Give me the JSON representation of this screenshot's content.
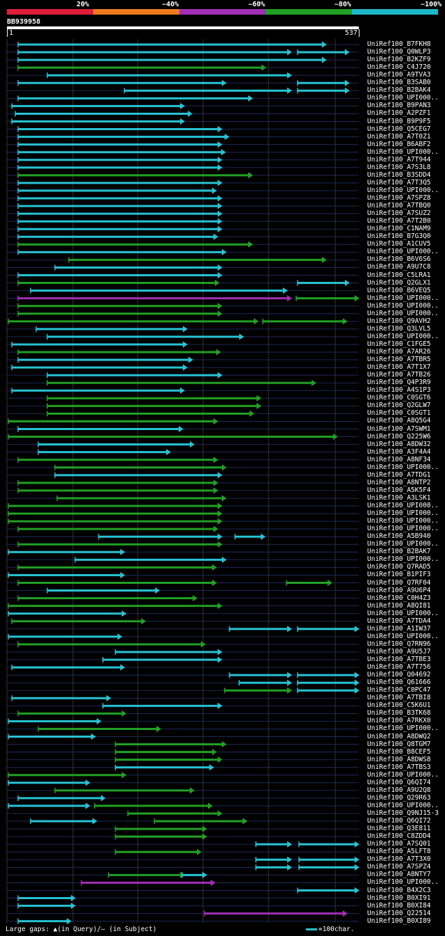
{
  "scale": {
    "labels": [
      "20%",
      "~40%",
      "~60%",
      "~80%",
      "~100%"
    ],
    "colors": [
      "#e01e3c",
      "#ee7a1e",
      "#a12fb5",
      "#22a024",
      "#1fb8c8"
    ]
  },
  "query": {
    "name": "BB939958",
    "start": "1",
    "end": "537"
  },
  "colors": {
    "cyan": "#27c3d5",
    "green": "#22a024",
    "magenta": "#a12fb5"
  },
  "legend": {
    "gaps": "Large gaps: ▲(in Query)/– (in Subject)",
    "scale_unit": "=100char."
  },
  "hits": [
    {
      "name": "UniRef100_B7FKH8",
      "segs": [
        {
          "s": 26,
          "e": 470,
          "c": "cyan"
        }
      ]
    },
    {
      "name": "UniRef100_Q0WLP3",
      "segs": [
        {
          "s": 26,
          "e": 420,
          "c": "cyan"
        },
        {
          "s": 428,
          "e": 503,
          "c": "cyan"
        }
      ]
    },
    {
      "name": "UniRef100_B2KZF9",
      "segs": [
        {
          "s": 26,
          "e": 470,
          "c": "cyan"
        }
      ]
    },
    {
      "name": "UniRef100_C4J720",
      "segs": [
        {
          "s": 26,
          "e": 383,
          "c": "green"
        }
      ]
    },
    {
      "name": "UniRef100_A9TVA3",
      "segs": [
        {
          "s": 68,
          "e": 420,
          "c": "cyan"
        }
      ]
    },
    {
      "name": "UniRef100_B3SAB0",
      "segs": [
        {
          "s": 26,
          "e": 326,
          "c": "cyan"
        },
        {
          "s": 428,
          "e": 503,
          "c": "cyan"
        }
      ]
    },
    {
      "name": "UniRef100_B2BAK4",
      "segs": [
        {
          "s": 179,
          "e": 420,
          "c": "cyan"
        },
        {
          "s": 428,
          "e": 503,
          "c": "cyan"
        }
      ]
    },
    {
      "name": "UniRef100_UPI000..",
      "segs": [
        {
          "s": 26,
          "e": 364,
          "c": "cyan"
        }
      ]
    },
    {
      "name": "UniRef100_B9PAN3",
      "segs": [
        {
          "s": 17,
          "e": 266,
          "c": "cyan"
        }
      ]
    },
    {
      "name": "UniRef100_A2PZF1",
      "segs": [
        {
          "s": 22,
          "e": 277,
          "c": "cyan"
        }
      ]
    },
    {
      "name": "UniRef100_B9P9F5",
      "segs": [
        {
          "s": 17,
          "e": 266,
          "c": "cyan"
        }
      ]
    },
    {
      "name": "UniRef100_Q5CEG7",
      "segs": [
        {
          "s": 26,
          "e": 320,
          "c": "cyan"
        }
      ]
    },
    {
      "name": "UniRef100_A7T0Z1",
      "segs": [
        {
          "s": 26,
          "e": 330,
          "c": "cyan"
        }
      ]
    },
    {
      "name": "UniRef100_B6ABF2",
      "segs": [
        {
          "s": 26,
          "e": 320,
          "c": "cyan"
        }
      ]
    },
    {
      "name": "UniRef100_UPI000..",
      "segs": [
        {
          "s": 26,
          "e": 325,
          "c": "cyan"
        }
      ]
    },
    {
      "name": "UniRef100_A7T944",
      "segs": [
        {
          "s": 26,
          "e": 320,
          "c": "cyan"
        }
      ]
    },
    {
      "name": "UniRef100_A7S3L8",
      "segs": [
        {
          "s": 26,
          "e": 320,
          "c": "cyan"
        }
      ]
    },
    {
      "name": "UniRef100_B3SDD4",
      "segs": [
        {
          "s": 26,
          "e": 364,
          "c": "green"
        }
      ]
    },
    {
      "name": "UniRef100_A7T3Q5",
      "segs": [
        {
          "s": 26,
          "e": 320,
          "c": "cyan"
        }
      ]
    },
    {
      "name": "UniRef100_UPI000..",
      "segs": [
        {
          "s": 26,
          "e": 312,
          "c": "cyan"
        }
      ]
    },
    {
      "name": "UniRef100_A7SPZ8",
      "segs": [
        {
          "s": 26,
          "e": 320,
          "c": "cyan"
        }
      ]
    },
    {
      "name": "UniRef100_A7TBQ0",
      "segs": [
        {
          "s": 26,
          "e": 320,
          "c": "cyan"
        }
      ]
    },
    {
      "name": "UniRef100_A7SUZ2",
      "segs": [
        {
          "s": 26,
          "e": 320,
          "c": "cyan"
        }
      ]
    },
    {
      "name": "UniRef100_A7T2B0",
      "segs": [
        {
          "s": 26,
          "e": 320,
          "c": "cyan"
        }
      ]
    },
    {
      "name": "UniRef100_C1NAM9",
      "segs": [
        {
          "s": 26,
          "e": 320,
          "c": "cyan"
        }
      ]
    },
    {
      "name": "UniRef100_B7G3Q0",
      "segs": [
        {
          "s": 26,
          "e": 314,
          "c": "cyan"
        }
      ]
    },
    {
      "name": "UniRef100_A1CUV5",
      "segs": [
        {
          "s": 26,
          "e": 364,
          "c": "green"
        }
      ]
    },
    {
      "name": "UniRef100_UPI000..",
      "segs": [
        {
          "s": 26,
          "e": 326,
          "c": "cyan"
        }
      ]
    },
    {
      "name": "UniRef100_B6V6S6",
      "segs": [
        {
          "s": 99,
          "e": 470,
          "c": "green"
        }
      ]
    },
    {
      "name": "UniRef100_A9U7C8",
      "segs": [
        {
          "s": 79,
          "e": 320,
          "c": "cyan"
        }
      ]
    },
    {
      "name": "UniRef100_C5LRA1",
      "segs": [
        {
          "s": 26,
          "e": 320,
          "c": "cyan"
        }
      ]
    },
    {
      "name": "UniRef100_Q2GLX1",
      "segs": [
        {
          "s": 26,
          "e": 316,
          "c": "green"
        },
        {
          "s": 428,
          "e": 503,
          "c": "cyan"
        }
      ]
    },
    {
      "name": "UniRef100_B6VEQ5",
      "segs": [
        {
          "s": 44,
          "e": 414,
          "c": "cyan"
        }
      ]
    },
    {
      "name": "UniRef100_UPI000..",
      "segs": [
        {
          "s": 26,
          "e": 420,
          "c": "magenta"
        },
        {
          "s": 426,
          "e": 517,
          "c": "green"
        }
      ]
    },
    {
      "name": "UniRef100_UPI000..",
      "segs": [
        {
          "s": 26,
          "e": 320,
          "c": "green"
        }
      ]
    },
    {
      "name": "UniRef100_UPI000..",
      "segs": [
        {
          "s": 26,
          "e": 320,
          "c": "green"
        }
      ]
    },
    {
      "name": "UniRef100_Q9AVH2",
      "segs": [
        {
          "s": 12,
          "e": 372,
          "c": "green"
        },
        {
          "s": 378,
          "e": 500,
          "c": "green"
        }
      ]
    },
    {
      "name": "UniRef100_Q3LVL5",
      "segs": [
        {
          "s": 52,
          "e": 270,
          "c": "cyan"
        }
      ]
    },
    {
      "name": "UniRef100_UPI000..",
      "segs": [
        {
          "s": 68,
          "e": 351,
          "c": "cyan"
        }
      ]
    },
    {
      "name": "UniRef100_C1FGE5",
      "segs": [
        {
          "s": 17,
          "e": 270,
          "c": "cyan"
        }
      ]
    },
    {
      "name": "UniRef100_A7AR26",
      "segs": [
        {
          "s": 26,
          "e": 318,
          "c": "green"
        }
      ]
    },
    {
      "name": "UniRef100_A7TBR5",
      "segs": [
        {
          "s": 26,
          "e": 278,
          "c": "cyan"
        }
      ]
    },
    {
      "name": "UniRef100_A7T1X7",
      "segs": [
        {
          "s": 17,
          "e": 270,
          "c": "cyan"
        }
      ]
    },
    {
      "name": "UniRef100_A7TB26",
      "segs": [
        {
          "s": 68,
          "e": 320,
          "c": "cyan"
        }
      ]
    },
    {
      "name": "UniRef100_Q4P3R9",
      "segs": [
        {
          "s": 68,
          "e": 455,
          "c": "green"
        }
      ]
    },
    {
      "name": "UniRef100_A4S1P3",
      "segs": [
        {
          "s": 17,
          "e": 266,
          "c": "cyan"
        }
      ]
    },
    {
      "name": "UniRef100_C0SGT6",
      "segs": [
        {
          "s": 68,
          "e": 376,
          "c": "green"
        }
      ]
    },
    {
      "name": "UniRef100_Q2GLW7",
      "segs": [
        {
          "s": 68,
          "e": 376,
          "c": "green"
        }
      ]
    },
    {
      "name": "UniRef100_C0SGT1",
      "segs": [
        {
          "s": 68,
          "e": 366,
          "c": "green"
        }
      ]
    },
    {
      "name": "UniRef100_A8Q5G4",
      "segs": [
        {
          "s": 12,
          "e": 314,
          "c": "green"
        }
      ]
    },
    {
      "name": "UniRef100_A7SWM1",
      "segs": [
        {
          "s": 26,
          "e": 264,
          "c": "cyan"
        }
      ]
    },
    {
      "name": "UniRef100_Q225W6",
      "segs": [
        {
          "s": 12,
          "e": 486,
          "c": "green"
        }
      ]
    },
    {
      "name": "UniRef100_A8DW32",
      "segs": [
        {
          "s": 55,
          "e": 280,
          "c": "cyan"
        }
      ]
    },
    {
      "name": "UniRef100_A3F4A4",
      "segs": [
        {
          "s": 55,
          "e": 246,
          "c": "cyan"
        }
      ]
    },
    {
      "name": "UniRef100_A8NF34",
      "segs": [
        {
          "s": 26,
          "e": 314,
          "c": "green"
        }
      ]
    },
    {
      "name": "UniRef100_UPI000..",
      "segs": [
        {
          "s": 79,
          "e": 326,
          "c": "green"
        }
      ]
    },
    {
      "name": "UniRef100_A7TDG1",
      "segs": [
        {
          "s": 79,
          "e": 320,
          "c": "cyan"
        }
      ]
    },
    {
      "name": "UniRef100_A8NTP2",
      "segs": [
        {
          "s": 26,
          "e": 314,
          "c": "green"
        }
      ]
    },
    {
      "name": "UniRef100_A5K5F4",
      "segs": [
        {
          "s": 26,
          "e": 314,
          "c": "green"
        }
      ]
    },
    {
      "name": "UniRef100_A3LSK1",
      "segs": [
        {
          "s": 82,
          "e": 326,
          "c": "green"
        }
      ]
    },
    {
      "name": "UniRef100_UPI000..",
      "segs": [
        {
          "s": 12,
          "e": 320,
          "c": "green"
        }
      ]
    },
    {
      "name": "UniRef100_UPI000..",
      "segs": [
        {
          "s": 12,
          "e": 320,
          "c": "green"
        }
      ]
    },
    {
      "name": "UniRef100_UPI000..",
      "segs": [
        {
          "s": 12,
          "e": 320,
          "c": "green"
        }
      ]
    },
    {
      "name": "UniRef100_UPI000..",
      "segs": [
        {
          "s": 26,
          "e": 314,
          "c": "green"
        }
      ]
    },
    {
      "name": "UniRef100_A5B940",
      "segs": [
        {
          "s": 142,
          "e": 320,
          "c": "cyan"
        },
        {
          "s": 338,
          "e": 382,
          "c": "cyan"
        }
      ]
    },
    {
      "name": "UniRef100_UPI000..",
      "segs": [
        {
          "s": 26,
          "e": 320,
          "c": "green"
        }
      ]
    },
    {
      "name": "UniRef100_B2BAK7",
      "segs": [
        {
          "s": 12,
          "e": 180,
          "c": "cyan"
        }
      ]
    },
    {
      "name": "UniRef100_UPI000..",
      "segs": [
        {
          "s": 108,
          "e": 326,
          "c": "cyan"
        }
      ]
    },
    {
      "name": "UniRef100_Q7RAD5",
      "segs": [
        {
          "s": 26,
          "e": 312,
          "c": "green"
        }
      ]
    },
    {
      "name": "UniRef100_B1PIF3",
      "segs": [
        {
          "s": 12,
          "e": 180,
          "c": "cyan"
        }
      ]
    },
    {
      "name": "UniRef100_Q7RF04",
      "segs": [
        {
          "s": 26,
          "e": 312,
          "c": "green"
        },
        {
          "s": 412,
          "e": 478,
          "c": "green"
        }
      ]
    },
    {
      "name": "UniRef100_A9U6P4",
      "segs": [
        {
          "s": 68,
          "e": 230,
          "c": "cyan"
        }
      ]
    },
    {
      "name": "UniRef100_C0H4Z3",
      "segs": [
        {
          "s": 26,
          "e": 284,
          "c": "green"
        }
      ]
    },
    {
      "name": "UniRef100_A8QI81",
      "segs": [
        {
          "s": 12,
          "e": 320,
          "c": "green"
        }
      ]
    },
    {
      "name": "UniRef100_UPI000..",
      "segs": [
        {
          "s": 12,
          "e": 182,
          "c": "cyan"
        }
      ]
    },
    {
      "name": "UniRef100_A7TDA4",
      "segs": [
        {
          "s": 17,
          "e": 210,
          "c": "green"
        }
      ]
    },
    {
      "name": "UniRef100_A1IW37",
      "segs": [
        {
          "s": 330,
          "e": 420,
          "c": "cyan"
        },
        {
          "s": 428,
          "e": 517,
          "c": "cyan"
        }
      ]
    },
    {
      "name": "UniRef100_UPI000..",
      "segs": [
        {
          "s": 12,
          "e": 176,
          "c": "cyan"
        }
      ]
    },
    {
      "name": "UniRef100_Q7RN96",
      "segs": [
        {
          "s": 26,
          "e": 296,
          "c": "green"
        }
      ]
    },
    {
      "name": "UniRef100_A9U5J7",
      "segs": [
        {
          "s": 166,
          "e": 320,
          "c": "cyan"
        }
      ]
    },
    {
      "name": "UniRef100_A7TBE3",
      "segs": [
        {
          "s": 148,
          "e": 320,
          "c": "cyan"
        }
      ]
    },
    {
      "name": "UniRef100_A7T756",
      "segs": [
        {
          "s": 17,
          "e": 180,
          "c": "cyan"
        }
      ]
    },
    {
      "name": "UniRef100_Q04692",
      "segs": [
        {
          "s": 330,
          "e": 420,
          "c": "cyan"
        },
        {
          "s": 428,
          "e": 517,
          "c": "cyan"
        }
      ]
    },
    {
      "name": "UniRef100_Q61666",
      "segs": [
        {
          "s": 344,
          "e": 420,
          "c": "cyan"
        },
        {
          "s": 428,
          "e": 517,
          "c": "cyan"
        }
      ]
    },
    {
      "name": "UniRef100_C0PC47",
      "segs": [
        {
          "s": 323,
          "e": 420,
          "c": "green"
        },
        {
          "s": 428,
          "e": 517,
          "c": "cyan"
        }
      ]
    },
    {
      "name": "UniRef100_A7TBI8",
      "segs": [
        {
          "s": 17,
          "e": 160,
          "c": "cyan"
        }
      ]
    },
    {
      "name": "UniRef100_C5K6U1",
      "segs": [
        {
          "s": 148,
          "e": 320,
          "c": "cyan"
        }
      ]
    },
    {
      "name": "UniRef100_B3TK68",
      "segs": [
        {
          "s": 26,
          "e": 182,
          "c": "green"
        }
      ]
    },
    {
      "name": "UniRef100_A7RKX0",
      "segs": [
        {
          "s": 12,
          "e": 146,
          "c": "cyan"
        }
      ]
    },
    {
      "name": "UniRef100_UPI000..",
      "segs": [
        {
          "s": 55,
          "e": 232,
          "c": "green"
        }
      ]
    },
    {
      "name": "UniRef100_A8DWQ2",
      "segs": [
        {
          "s": 12,
          "e": 138,
          "c": "cyan"
        }
      ]
    },
    {
      "name": "UniRef100_Q8TGM7",
      "segs": [
        {
          "s": 166,
          "e": 326,
          "c": "green"
        }
      ]
    },
    {
      "name": "UniRef100_B8CEF5",
      "segs": [
        {
          "s": 166,
          "e": 312,
          "c": "green"
        }
      ]
    },
    {
      "name": "UniRef100_A8DWS8",
      "segs": [
        {
          "s": 166,
          "e": 320,
          "c": "green"
        }
      ]
    },
    {
      "name": "UniRef100_A7TBS3",
      "segs": [
        {
          "s": 166,
          "e": 308,
          "c": "cyan"
        }
      ]
    },
    {
      "name": "UniRef100_UPI000..",
      "segs": [
        {
          "s": 12,
          "e": 182,
          "c": "green"
        }
      ]
    },
    {
      "name": "UniRef100_Q6QI74",
      "segs": [
        {
          "s": 12,
          "e": 130,
          "c": "cyan"
        }
      ]
    },
    {
      "name": "UniRef100_A9U2Q8",
      "segs": [
        {
          "s": 79,
          "e": 280,
          "c": "green"
        }
      ]
    },
    {
      "name": "UniRef100_Q29R63",
      "segs": [
        {
          "s": 26,
          "e": 152,
          "c": "cyan"
        }
      ]
    },
    {
      "name": "UniRef100_UPI000..",
      "segs": [
        {
          "s": 12,
          "e": 130,
          "c": "cyan"
        },
        {
          "s": 136,
          "e": 306,
          "c": "green"
        }
      ]
    },
    {
      "name": "UniRef100_Q9NJ15-3",
      "segs": [
        {
          "s": 184,
          "e": 320,
          "c": "green"
        }
      ]
    },
    {
      "name": "UniRef100_Q6QI72",
      "segs": [
        {
          "s": 44,
          "e": 140,
          "c": "cyan"
        },
        {
          "s": 222,
          "e": 356,
          "c": "green"
        }
      ]
    },
    {
      "name": "UniRef100_Q3E811",
      "segs": [
        {
          "s": 166,
          "e": 298,
          "c": "green"
        }
      ]
    },
    {
      "name": "UniRef100_C8ZDD4",
      "segs": [
        {
          "s": 166,
          "e": 298,
          "c": "green"
        }
      ]
    },
    {
      "name": "UniRef100_A7SQ01",
      "segs": [
        {
          "s": 368,
          "e": 420,
          "c": "cyan"
        },
        {
          "s": 430,
          "e": 517,
          "c": "cyan"
        }
      ]
    },
    {
      "name": "UniRef100_A5LFT8",
      "segs": [
        {
          "s": 166,
          "e": 290,
          "c": "green"
        }
      ]
    },
    {
      "name": "UniRef100_A7T3X0",
      "segs": [
        {
          "s": 368,
          "e": 420,
          "c": "cyan"
        },
        {
          "s": 430,
          "e": 517,
          "c": "cyan"
        }
      ]
    },
    {
      "name": "UniRef100_A7SPZ4",
      "segs": [
        {
          "s": 368,
          "e": 420,
          "c": "cyan"
        },
        {
          "s": 430,
          "e": 517,
          "c": "cyan"
        }
      ]
    },
    {
      "name": "UniRef100_A8NTY7",
      "segs": [
        {
          "s": 156,
          "e": 266,
          "c": "green"
        },
        {
          "s": 262,
          "e": 298,
          "c": "cyan"
        }
      ]
    },
    {
      "name": "UniRef100_UPI000..",
      "segs": [
        {
          "s": 117,
          "e": 310,
          "c": "magenta"
        }
      ]
    },
    {
      "name": "UniRef100_B4X2C3",
      "segs": [
        {
          "s": 428,
          "e": 517,
          "c": "cyan"
        }
      ]
    },
    {
      "name": "UniRef100_B0XI91",
      "segs": [
        {
          "s": 26,
          "e": 109,
          "c": "cyan"
        }
      ]
    },
    {
      "name": "UniRef100_B0XI84",
      "segs": [
        {
          "s": 26,
          "e": 109,
          "c": "cyan"
        }
      ]
    },
    {
      "name": "UniRef100_Q22514",
      "segs": [
        {
          "s": 294,
          "e": 500,
          "c": "magenta"
        }
      ]
    },
    {
      "name": "UniRef100_B0XI89",
      "segs": [
        {
          "s": 26,
          "e": 103,
          "c": "cyan"
        }
      ]
    }
  ]
}
